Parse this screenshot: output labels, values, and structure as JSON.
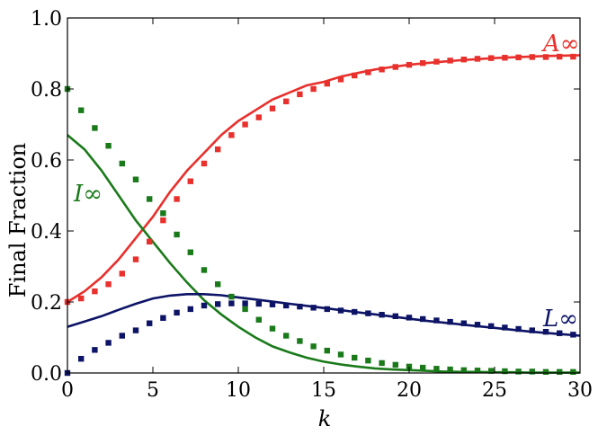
{
  "chart_data": {
    "type": "line",
    "xlabel": "k",
    "ylabel": "Final Fraction",
    "xlim": [
      0,
      30
    ],
    "ylim": [
      0.0,
      1.0
    ],
    "x_ticks": [
      "0",
      "5",
      "10",
      "15",
      "20",
      "25",
      "30"
    ],
    "y_ticks": [
      "0.0",
      "0.2",
      "0.4",
      "0.6",
      "0.8",
      "1.0"
    ],
    "grid": false,
    "annotations": [
      {
        "text": "A∞",
        "color": "#e8302c"
      },
      {
        "text": "I∞",
        "color": "#1a7a1a"
      },
      {
        "text": "L∞",
        "color": "#0d1466"
      }
    ],
    "series": [
      {
        "style": "line",
        "color": "#e8302c",
        "annotation": "A∞",
        "x": [
          0,
          1,
          2,
          3,
          4,
          5,
          6,
          7,
          8,
          9,
          10,
          11,
          12,
          13,
          14,
          15,
          16,
          17,
          18,
          19,
          20,
          21,
          22,
          23,
          24,
          25,
          26,
          27,
          28,
          29,
          30
        ],
        "y": [
          0.2,
          0.23,
          0.27,
          0.32,
          0.38,
          0.44,
          0.51,
          0.57,
          0.62,
          0.67,
          0.71,
          0.74,
          0.77,
          0.79,
          0.81,
          0.82,
          0.835,
          0.845,
          0.855,
          0.862,
          0.868,
          0.873,
          0.877,
          0.881,
          0.884,
          0.887,
          0.889,
          0.891,
          0.893,
          0.894,
          0.895
        ]
      },
      {
        "style": "line",
        "color": "#1a7a1a",
        "annotation": "I∞",
        "x": [
          0,
          1,
          2,
          3,
          4,
          5,
          6,
          7,
          8,
          9,
          10,
          11,
          12,
          13,
          14,
          15,
          16,
          17,
          18,
          19,
          20,
          21,
          22,
          23,
          24,
          25,
          26,
          27,
          28,
          29,
          30
        ],
        "y": [
          0.67,
          0.63,
          0.57,
          0.5,
          0.43,
          0.37,
          0.31,
          0.255,
          0.205,
          0.165,
          0.13,
          0.1,
          0.075,
          0.058,
          0.043,
          0.032,
          0.024,
          0.018,
          0.013,
          0.01,
          0.008,
          0.006,
          0.004,
          0.003,
          0.003,
          0.002,
          0.002,
          0.001,
          0.001,
          0.001,
          0.001
        ]
      },
      {
        "style": "line",
        "color": "#0d1466",
        "annotation": "L∞",
        "x": [
          0,
          1,
          2,
          3,
          4,
          5,
          6,
          7,
          8,
          9,
          10,
          11,
          12,
          13,
          14,
          15,
          16,
          17,
          18,
          19,
          20,
          21,
          22,
          23,
          24,
          25,
          26,
          27,
          28,
          29,
          30
        ],
        "y": [
          0.13,
          0.145,
          0.16,
          0.178,
          0.195,
          0.21,
          0.218,
          0.222,
          0.222,
          0.219,
          0.213,
          0.207,
          0.201,
          0.195,
          0.189,
          0.183,
          0.177,
          0.171,
          0.165,
          0.159,
          0.153,
          0.147,
          0.142,
          0.137,
          0.132,
          0.127,
          0.122,
          0.117,
          0.113,
          0.109,
          0.105
        ]
      },
      {
        "style": "markers",
        "color": "#e8302c",
        "annotation": "A∞",
        "x": [
          0,
          0.8,
          1.6,
          2.4,
          3.2,
          4.0,
          4.8,
          5.6,
          6.4,
          7.2,
          8.0,
          8.8,
          9.6,
          10.4,
          11.2,
          12.0,
          12.8,
          13.6,
          14.4,
          15.2,
          16.0,
          16.8,
          17.6,
          18.4,
          19.2,
          20.0,
          20.8,
          21.6,
          22.4,
          23.2,
          24.0,
          24.8,
          25.6,
          26.4,
          27.2,
          28.0,
          28.8,
          29.6
        ],
        "y": [
          0.2,
          0.21,
          0.23,
          0.25,
          0.28,
          0.32,
          0.37,
          0.43,
          0.49,
          0.54,
          0.59,
          0.63,
          0.67,
          0.7,
          0.72,
          0.745,
          0.765,
          0.785,
          0.8,
          0.815,
          0.827,
          0.838,
          0.847,
          0.855,
          0.862,
          0.868,
          0.873,
          0.877,
          0.88,
          0.883,
          0.885,
          0.887,
          0.888,
          0.889,
          0.89,
          0.89,
          0.891,
          0.891
        ]
      },
      {
        "style": "markers",
        "color": "#1a7a1a",
        "annotation": "I∞",
        "x": [
          0,
          0.8,
          1.6,
          2.4,
          3.2,
          4.0,
          4.8,
          5.6,
          6.4,
          7.2,
          8.0,
          8.8,
          9.6,
          10.4,
          11.2,
          12.0,
          12.8,
          13.6,
          14.4,
          15.2,
          16.0,
          16.8,
          17.6,
          18.4,
          19.2,
          20.0,
          20.8,
          21.6,
          22.4,
          23.2,
          24.0,
          24.8,
          25.6,
          26.4,
          27.2,
          28.0,
          28.8,
          29.6
        ],
        "y": [
          0.8,
          0.74,
          0.69,
          0.64,
          0.59,
          0.545,
          0.49,
          0.45,
          0.39,
          0.34,
          0.29,
          0.25,
          0.215,
          0.18,
          0.15,
          0.125,
          0.105,
          0.09,
          0.075,
          0.063,
          0.052,
          0.043,
          0.035,
          0.028,
          0.023,
          0.018,
          0.015,
          0.012,
          0.01,
          0.008,
          0.007,
          0.006,
          0.005,
          0.004,
          0.004,
          0.003,
          0.003,
          0.003
        ]
      },
      {
        "style": "markers",
        "color": "#0d1466",
        "annotation": "L∞",
        "x": [
          0,
          0.8,
          1.6,
          2.4,
          3.2,
          4.0,
          4.8,
          5.6,
          6.4,
          7.2,
          8.0,
          8.8,
          9.6,
          10.4,
          11.2,
          12.0,
          12.8,
          13.6,
          14.4,
          15.2,
          16.0,
          16.8,
          17.6,
          18.4,
          19.2,
          20.0,
          20.8,
          21.6,
          22.4,
          23.2,
          24.0,
          24.8,
          25.6,
          26.4,
          27.2,
          28.0,
          28.8,
          29.6
        ],
        "y": [
          0.0,
          0.04,
          0.065,
          0.085,
          0.105,
          0.12,
          0.14,
          0.155,
          0.17,
          0.18,
          0.19,
          0.194,
          0.196,
          0.196,
          0.195,
          0.193,
          0.19,
          0.187,
          0.184,
          0.18,
          0.176,
          0.172,
          0.168,
          0.164,
          0.16,
          0.156,
          0.152,
          0.148,
          0.144,
          0.14,
          0.136,
          0.132,
          0.128,
          0.124,
          0.12,
          0.116,
          0.112,
          0.108
        ]
      }
    ]
  }
}
